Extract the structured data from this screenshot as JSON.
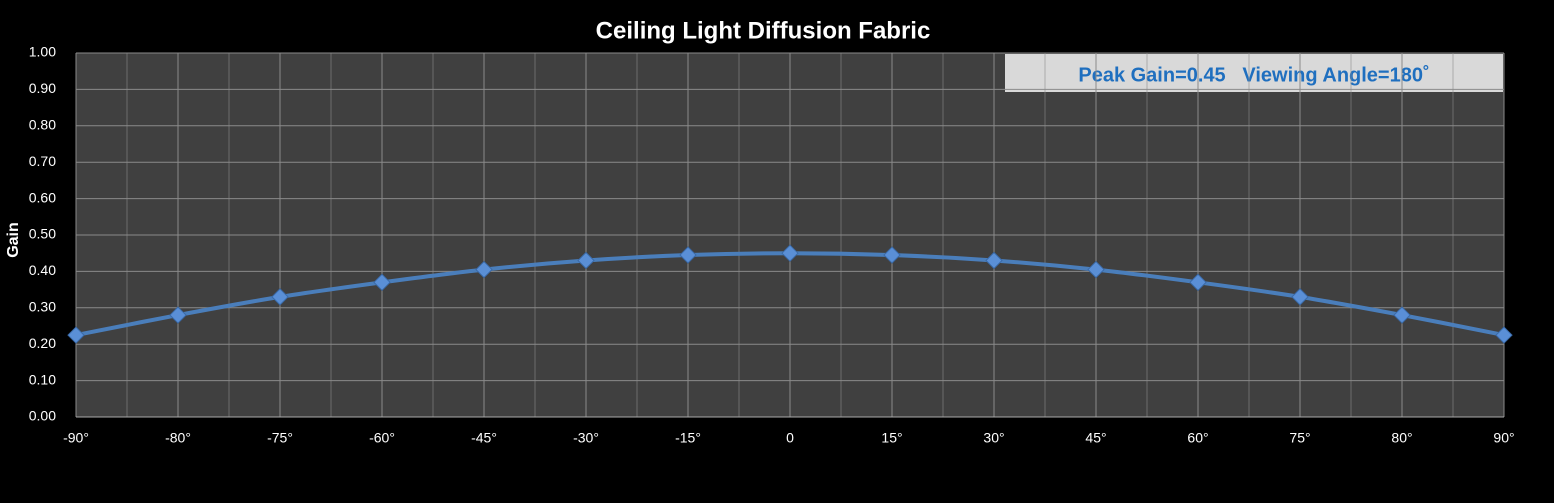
{
  "chart_data": {
    "type": "line",
    "title": "Ceiling Light Diffusion Fabric",
    "y_label": "Gain",
    "annotation": "Peak Gain=0.45   Viewing Angle=180˚",
    "categories": [
      "-90°",
      "-80°",
      "-75°",
      "-60°",
      "-45°",
      "-30°",
      "-15°",
      "0",
      "15°",
      "30°",
      "45°",
      "60°",
      "75°",
      "80°",
      "90°"
    ],
    "values": [
      0.225,
      0.28,
      0.33,
      0.37,
      0.405,
      0.43,
      0.445,
      0.45,
      0.445,
      0.43,
      0.405,
      0.37,
      0.33,
      0.28,
      0.225
    ],
    "color": "#4a7ebb",
    "ylim": [
      0,
      1
    ],
    "yticks": [
      {
        "value": 0,
        "label": "0.00"
      },
      {
        "value": 0.1,
        "label": "0.10"
      },
      {
        "value": 0.2,
        "label": "0.20"
      },
      {
        "value": 0.3,
        "label": "0.30"
      },
      {
        "value": 0.4,
        "label": "0.40"
      },
      {
        "value": 0.5,
        "label": "0.50"
      },
      {
        "value": 0.6,
        "label": "0.60"
      },
      {
        "value": 0.7,
        "label": "0.70"
      },
      {
        "value": 0.8,
        "label": "0.80"
      },
      {
        "value": 0.9,
        "label": "0.90"
      },
      {
        "value": 1,
        "label": "1.00"
      }
    ],
    "grid": true
  }
}
